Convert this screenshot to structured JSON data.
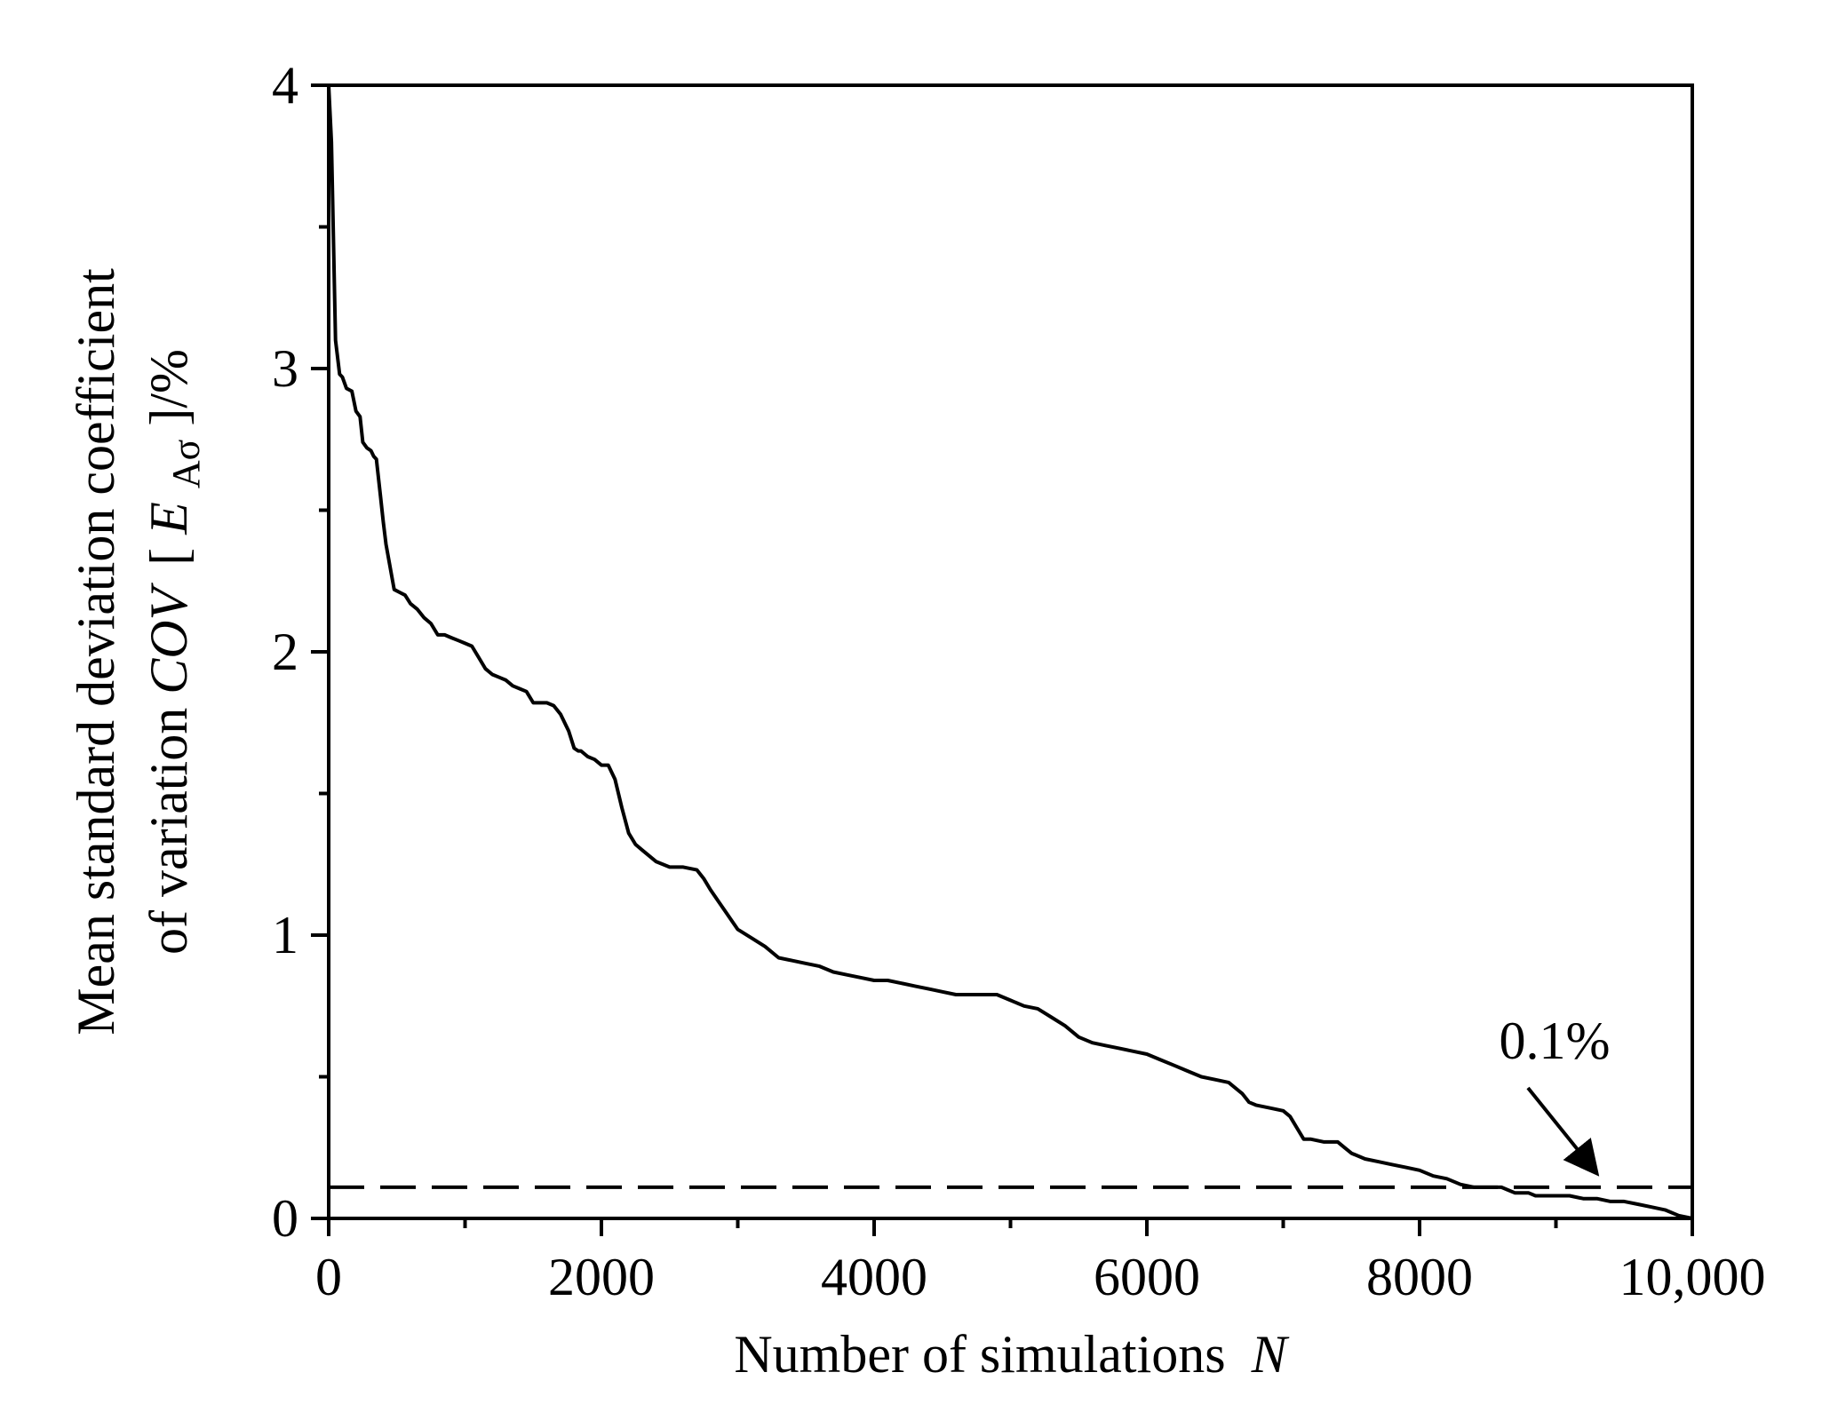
{
  "chart_data": {
    "type": "line",
    "title": "",
    "xlabel": "Number of simulations",
    "xlabel_var": "N",
    "ylabel_line1": "Mean standard deviation coefficient",
    "ylabel_line2_text": "of variation ",
    "ylabel_line2_var": "COV",
    "ylabel_line2_bracket_open": "[",
    "ylabel_line2_E": "E",
    "ylabel_line2_sub": "Aσ",
    "ylabel_line2_tail": "]/%",
    "xlim": [
      0,
      10000
    ],
    "ylim": [
      0,
      4
    ],
    "x_ticks": [
      {
        "value": 0,
        "label": "0"
      },
      {
        "value": 2000,
        "label": "2000"
      },
      {
        "value": 4000,
        "label": "4000"
      },
      {
        "value": 6000,
        "label": "6000"
      },
      {
        "value": 8000,
        "label": "8000"
      },
      {
        "value": 10000,
        "label": "10,000"
      }
    ],
    "y_ticks": [
      {
        "value": 0,
        "label": "0"
      },
      {
        "value": 1,
        "label": "1"
      },
      {
        "value": 2,
        "label": "2"
      },
      {
        "value": 3,
        "label": "3"
      },
      {
        "value": 4,
        "label": "4"
      }
    ],
    "x_minor_step": 1000,
    "y_minor_step": 0.5,
    "grid": false,
    "series": [
      {
        "color": "#000000",
        "style": "solid",
        "x": [
          0,
          20,
          50,
          80,
          100,
          130,
          170,
          200,
          230,
          250,
          280,
          310,
          330,
          350,
          380,
          400,
          420,
          450,
          480,
          520,
          560,
          600,
          650,
          700,
          750,
          800,
          850,
          900,
          950,
          1000,
          1050,
          1100,
          1150,
          1200,
          1250,
          1300,
          1350,
          1400,
          1450,
          1500,
          1550,
          1600,
          1650,
          1700,
          1730,
          1760,
          1800,
          1830,
          1850,
          1900,
          1950,
          2000,
          2050,
          2100,
          2150,
          2200,
          2250,
          2300,
          2400,
          2500,
          2600,
          2700,
          2750,
          2800,
          2900,
          3000,
          3100,
          3200,
          3300,
          3400,
          3500,
          3600,
          3700,
          3800,
          3900,
          4000,
          4100,
          4200,
          4300,
          4400,
          4500,
          4600,
          4700,
          4800,
          4900,
          5000,
          5100,
          5200,
          5300,
          5400,
          5500,
          5600,
          5700,
          5800,
          5900,
          6000,
          6100,
          6200,
          6300,
          6400,
          6500,
          6600,
          6700,
          6750,
          6800,
          6900,
          7000,
          7050,
          7100,
          7150,
          7200,
          7300,
          7400,
          7450,
          7500,
          7600,
          7700,
          7800,
          7900,
          8000,
          8100,
          8200,
          8300,
          8400,
          8500,
          8600,
          8650,
          8700,
          8800,
          8850,
          8900,
          9000,
          9100,
          9200,
          9300,
          9400,
          9500,
          9600,
          9700,
          9800,
          9900,
          10000
        ],
        "y": [
          4.0,
          3.8,
          3.1,
          2.98,
          2.97,
          2.93,
          2.92,
          2.85,
          2.83,
          2.74,
          2.72,
          2.71,
          2.69,
          2.68,
          2.55,
          2.46,
          2.38,
          2.3,
          2.22,
          2.21,
          2.2,
          2.17,
          2.15,
          2.12,
          2.1,
          2.06,
          2.06,
          2.05,
          2.04,
          2.03,
          2.02,
          1.98,
          1.94,
          1.92,
          1.91,
          1.9,
          1.88,
          1.87,
          1.86,
          1.82,
          1.82,
          1.82,
          1.81,
          1.78,
          1.75,
          1.72,
          1.66,
          1.65,
          1.65,
          1.63,
          1.62,
          1.6,
          1.6,
          1.55,
          1.45,
          1.36,
          1.32,
          1.3,
          1.26,
          1.24,
          1.24,
          1.23,
          1.2,
          1.16,
          1.09,
          1.02,
          0.99,
          0.96,
          0.92,
          0.91,
          0.9,
          0.89,
          0.87,
          0.86,
          0.85,
          0.84,
          0.84,
          0.83,
          0.82,
          0.81,
          0.8,
          0.79,
          0.79,
          0.79,
          0.79,
          0.77,
          0.75,
          0.74,
          0.71,
          0.68,
          0.64,
          0.62,
          0.61,
          0.6,
          0.59,
          0.58,
          0.56,
          0.54,
          0.52,
          0.5,
          0.49,
          0.48,
          0.44,
          0.41,
          0.4,
          0.39,
          0.38,
          0.36,
          0.32,
          0.28,
          0.28,
          0.27,
          0.27,
          0.25,
          0.23,
          0.21,
          0.2,
          0.19,
          0.18,
          0.17,
          0.15,
          0.14,
          0.12,
          0.11,
          0.11,
          0.11,
          0.1,
          0.09,
          0.09,
          0.08,
          0.08,
          0.08,
          0.08,
          0.07,
          0.07,
          0.06,
          0.06,
          0.05,
          0.04,
          0.03,
          0.01,
          0.0
        ]
      },
      {
        "color": "#000000",
        "style": "dashed",
        "x": [
          0,
          10000
        ],
        "y": [
          0.11,
          0.11
        ]
      }
    ],
    "annotations": [
      {
        "text": "0.1%",
        "arrow_to_x": 9350,
        "arrow_to_y": 0.13
      }
    ]
  }
}
